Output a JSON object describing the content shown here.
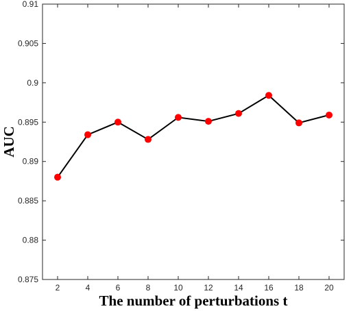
{
  "chart_data": {
    "type": "line",
    "xlabel": "The number of perturbations t",
    "ylabel": "AUC",
    "x": [
      2,
      4,
      6,
      8,
      10,
      12,
      14,
      16,
      18,
      20
    ],
    "y": [
      0.888,
      0.8934,
      0.895,
      0.8928,
      0.8956,
      0.8951,
      0.8961,
      0.8984,
      0.8949,
      0.8959
    ],
    "xlim": [
      1,
      21
    ],
    "ylim": [
      0.875,
      0.91
    ],
    "xticks": [
      "2",
      "4",
      "6",
      "8",
      "10",
      "12",
      "14",
      "16",
      "18",
      "20"
    ],
    "yticks": [
      "0.875",
      "0.88",
      "0.885",
      "0.89",
      "0.895",
      "0.9",
      "0.905",
      "0.91"
    ],
    "grid": false,
    "line_color": "#000000",
    "marker_color": "#ff0000"
  }
}
